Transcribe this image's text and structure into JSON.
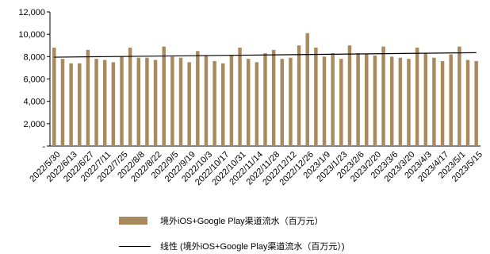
{
  "colors": {
    "bar": "#a98a5f",
    "trendline": "#000000",
    "axis": "#000000"
  },
  "chart_data": {
    "type": "bar",
    "title": "",
    "xlabel": "",
    "ylabel": "",
    "ylim": [
      0,
      12000
    ],
    "yticks": [
      0,
      2000,
      4000,
      6000,
      8000,
      10000,
      12000
    ],
    "ytick_labels": [
      "-",
      "2,000",
      "4,000",
      "6,000",
      "8,000",
      "10,000",
      "12,000"
    ],
    "grid": false,
    "legend_position": "bottom",
    "categories": [
      "2022/5/30",
      "2022/6/6",
      "2022/6/13",
      "2022/6/20",
      "2022/6/27",
      "2022/7/4",
      "2022/7/11",
      "2022/7/18",
      "2022/7/25",
      "2022/8/1",
      "2022/8/8",
      "2022/8/15",
      "2022/8/22",
      "2022/8/29",
      "2022/9/5",
      "2022/9/12",
      "2022/9/19",
      "2022/9/26",
      "2022/10/3",
      "2022/10/10",
      "2022/10/17",
      "2022/10/24",
      "2022/10/31",
      "2022/11/7",
      "2022/11/14",
      "2022/11/21",
      "2022/11/28",
      "2022/12/5",
      "2022/12/12",
      "2022/12/19",
      "2022/12/26",
      "2023/1/2",
      "2023/1/9",
      "2023/1/16",
      "2023/1/23",
      "2023/1/30",
      "2023/2/6",
      "2023/2/13",
      "2023/2/20",
      "2023/2/27",
      "2023/3/6",
      "2023/3/13",
      "2023/3/20",
      "2023/3/27",
      "2023/4/3",
      "2023/4/10",
      "2023/4/17",
      "2023/4/24",
      "2023/5/1",
      "2023/5/8",
      "2023/5/15"
    ],
    "tick_labels": [
      "2022/5/30",
      "2022/6/13",
      "2022/6/27",
      "2022/7/11",
      "2022/7/25",
      "2022/8/8",
      "2022/8/22",
      "2022/9/5",
      "2022/9/19",
      "2022/10/3",
      "2022/10/17",
      "2022/10/31",
      "2022/11/14",
      "2022/11/28",
      "2022/12/12",
      "2022/12/26",
      "2023/1/9",
      "2023/1/23",
      "2023/2/6",
      "2023/2/20",
      "2023/3/6",
      "2023/3/20",
      "2023/4/3",
      "2023/4/17",
      "2023/5/1",
      "2023/5/15"
    ],
    "series": [
      {
        "name": "境外iOS+Google Play渠道流水（百万元）",
        "type": "bar",
        "values": [
          8800,
          7800,
          7400,
          7400,
          8600,
          7800,
          7700,
          7500,
          8000,
          8800,
          7900,
          7900,
          7700,
          8900,
          8000,
          7900,
          7500,
          8500,
          8100,
          7600,
          7400,
          8100,
          8800,
          7800,
          7500,
          8300,
          8600,
          7800,
          7900,
          9000,
          10100,
          8800,
          8000,
          8300,
          7800,
          9000,
          8300,
          8200,
          8100,
          8900,
          8000,
          7900,
          7800,
          8800,
          8300,
          7900,
          7600,
          8200,
          8900,
          7700,
          7600
        ]
      },
      {
        "name": "线性 (境外iOS+Google Play渠道流水（百万元）)",
        "type": "line",
        "x": [
          "2022/5/30",
          "2023/5/15"
        ],
        "values": [
          7950,
          8350
        ]
      }
    ]
  },
  "legend": {
    "bar_label": "境外iOS+Google Play渠道流水（百万元）",
    "line_label": "线性 (境外iOS+Google Play渠道流水（百万元）)"
  }
}
